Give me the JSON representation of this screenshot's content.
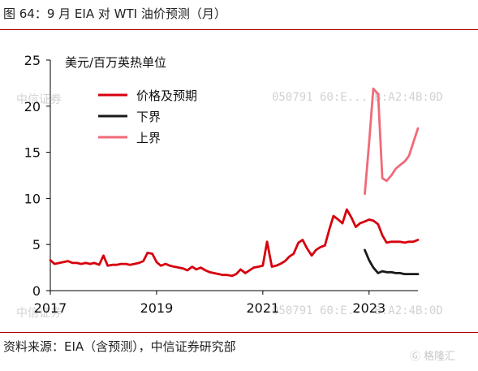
{
  "header": {
    "figure_title": "图 64：9 月 EIA 对 WTI 油价预测（月）"
  },
  "footer": {
    "source": "资料来源：EIA（含预测），中信证券研究部"
  },
  "watermarks": {
    "top_left": "中信证券",
    "top_right": "050791  60:E... B:A2:4B:0D",
    "bottom_right": "050791  60:E... B:A2:4B:0D",
    "bottom_left": "中信证券",
    "logo": "格隆汇"
  },
  "colors": {
    "forecast": "#d7000f",
    "lower": "#1a1a1a",
    "upper": "#f06a79",
    "rule": "#b00000"
  },
  "chart_data": {
    "type": "line",
    "title": "",
    "ylabel": "美元/百万英热单位",
    "xlabel": "",
    "xlim": [
      2017.0,
      2023.92
    ],
    "ylim": [
      0,
      25
    ],
    "yticks": [
      0,
      5,
      10,
      15,
      20,
      25
    ],
    "xticks": [
      {
        "value": 2017,
        "label": "2017"
      },
      {
        "value": 2019,
        "label": "2019"
      },
      {
        "value": 2021,
        "label": "2021"
      },
      {
        "value": 2023,
        "label": "2023"
      }
    ],
    "grid": false,
    "legend_position": "top-left",
    "series": [
      {
        "name": "价格及预期",
        "color": "#d7000f",
        "x": [
          2017.0,
          2017.08,
          2017.17,
          2017.25,
          2017.33,
          2017.42,
          2017.5,
          2017.58,
          2017.67,
          2017.75,
          2017.83,
          2017.92,
          2018.0,
          2018.08,
          2018.17,
          2018.25,
          2018.33,
          2018.42,
          2018.5,
          2018.58,
          2018.67,
          2018.75,
          2018.83,
          2018.92,
          2019.0,
          2019.08,
          2019.17,
          2019.25,
          2019.33,
          2019.42,
          2019.5,
          2019.58,
          2019.67,
          2019.75,
          2019.83,
          2019.92,
          2020.0,
          2020.08,
          2020.17,
          2020.25,
          2020.33,
          2020.42,
          2020.5,
          2020.58,
          2020.67,
          2020.75,
          2020.83,
          2020.92,
          2021.0,
          2021.08,
          2021.17,
          2021.25,
          2021.33,
          2021.42,
          2021.5,
          2021.58,
          2021.67,
          2021.75,
          2021.83,
          2021.92,
          2022.0,
          2022.08,
          2022.17,
          2022.25,
          2022.33,
          2022.42,
          2022.5,
          2022.58,
          2022.67,
          2022.75,
          2022.83,
          2022.92,
          2023.0,
          2023.08,
          2023.17,
          2023.25,
          2023.33,
          2023.42,
          2023.5,
          2023.58,
          2023.67,
          2023.75,
          2023.83,
          2023.92
        ],
        "values": [
          3.3,
          2.9,
          3.0,
          3.1,
          3.2,
          3.0,
          3.0,
          2.9,
          3.0,
          2.9,
          3.0,
          2.8,
          3.8,
          2.7,
          2.8,
          2.8,
          2.9,
          2.9,
          2.8,
          2.9,
          3.0,
          3.2,
          4.1,
          4.0,
          3.1,
          2.7,
          2.9,
          2.7,
          2.6,
          2.5,
          2.4,
          2.2,
          2.6,
          2.3,
          2.5,
          2.2,
          2.0,
          1.9,
          1.8,
          1.7,
          1.7,
          1.6,
          1.8,
          2.3,
          1.9,
          2.2,
          2.5,
          2.6,
          2.7,
          5.3,
          2.6,
          2.7,
          2.9,
          3.2,
          3.7,
          4.0,
          5.2,
          5.5,
          4.6,
          3.8,
          4.4,
          4.7,
          4.9,
          6.6,
          8.1,
          7.7,
          7.3,
          8.8,
          7.9,
          6.9,
          7.3,
          7.5,
          7.7,
          7.6,
          7.2,
          6.0,
          5.2,
          5.3,
          5.3,
          5.3,
          5.2,
          5.3,
          5.3,
          5.5
        ]
      },
      {
        "name": "下界",
        "color": "#1a1a1a",
        "x": [
          2022.92,
          2023.0,
          2023.08,
          2023.17,
          2023.25,
          2023.33,
          2023.42,
          2023.5,
          2023.58,
          2023.67,
          2023.75,
          2023.83,
          2023.92
        ],
        "values": [
          4.4,
          3.3,
          2.5,
          1.9,
          2.1,
          2.0,
          2.0,
          1.9,
          1.9,
          1.8,
          1.8,
          1.8,
          1.8
        ]
      },
      {
        "name": "上界",
        "color": "#f06a79",
        "x": [
          2022.92,
          2023.0,
          2023.08,
          2023.17,
          2023.25,
          2023.33,
          2023.42,
          2023.5,
          2023.58,
          2023.67,
          2023.75,
          2023.83,
          2023.92
        ],
        "values": [
          10.5,
          16.0,
          21.9,
          21.3,
          12.2,
          11.9,
          12.5,
          13.2,
          13.6,
          14.0,
          14.6,
          16.0,
          17.6
        ]
      }
    ]
  }
}
